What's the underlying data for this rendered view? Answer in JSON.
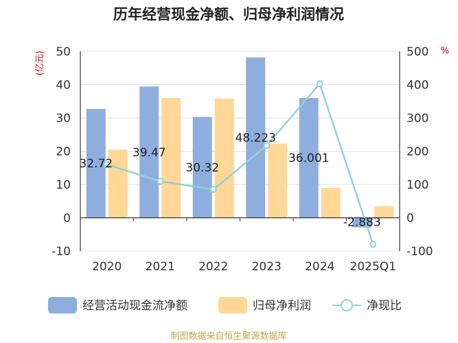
{
  "chart_data": {
    "type": "bar+line",
    "title": "历年经营现金净额、归母净利润情况",
    "categories": [
      "2020",
      "2021",
      "2022",
      "2023",
      "2024",
      "2025Q1"
    ],
    "series": [
      {
        "name": "经营活动现金流净额",
        "type": "bar",
        "axis": "left",
        "color": "#8eaedd",
        "values": [
          32.72,
          39.47,
          30.32,
          48.223,
          36.001,
          -2.883
        ],
        "labels": [
          "32.72",
          "39.47",
          "30.32",
          "48.223",
          "36.001",
          "-2.883"
        ]
      },
      {
        "name": "归母净利润",
        "type": "bar",
        "axis": "left",
        "color": "#ffd796",
        "values": [
          20.5,
          36.0,
          35.8,
          22.3,
          9.0,
          3.5
        ]
      },
      {
        "name": "净现比",
        "type": "line",
        "axis": "right",
        "color": "#8dd4d7",
        "values": [
          160,
          110,
          85,
          217,
          403,
          -80
        ]
      }
    ],
    "left_axis": {
      "unit": "(亿元)",
      "min": -10,
      "max": 50,
      "ticks": [
        -10,
        0,
        10,
        20,
        30,
        40,
        50
      ]
    },
    "right_axis": {
      "unit": "%",
      "min": -100,
      "max": 500,
      "ticks": [
        -100,
        0,
        100,
        200,
        300,
        400,
        500
      ]
    },
    "grid": true,
    "legend_position": "bottom",
    "source": "制图数据来自恒生聚源数据库"
  }
}
